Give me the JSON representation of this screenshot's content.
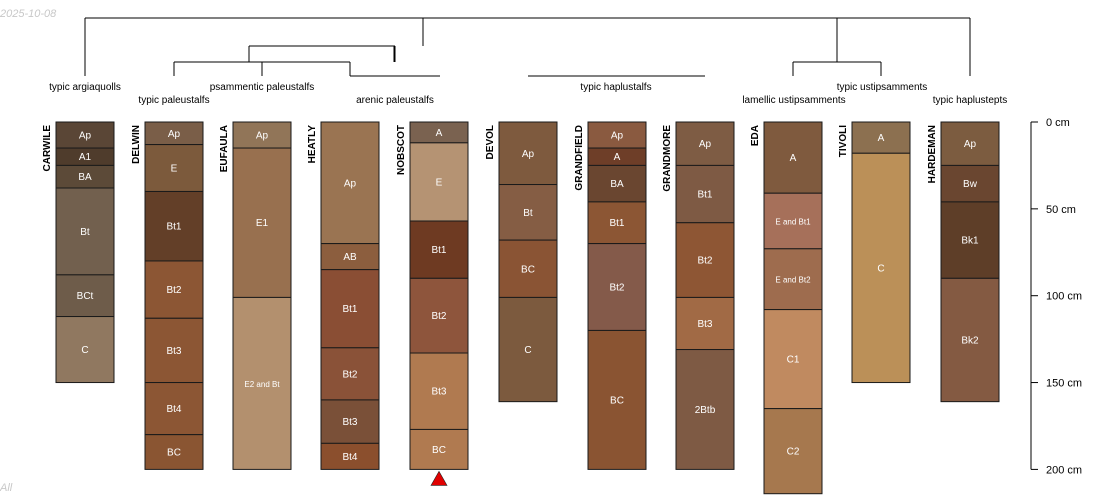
{
  "meta": {
    "date": "2025-10-08",
    "footer": "All"
  },
  "chart_data": {
    "type": "soil-profile-sketch",
    "title": "",
    "depth_unit": "cm",
    "depth_axis": {
      "ticks": [
        0,
        50,
        100,
        150,
        200
      ],
      "labels": [
        "0 cm",
        "50 cm",
        "100 cm",
        "150 cm",
        "200 cm"
      ],
      "range": [
        0,
        200
      ]
    },
    "groups": [
      {
        "label": "typic argiaquolls",
        "members": [
          "CARWILE"
        ]
      },
      {
        "label": "typic paleustalfs",
        "members": [
          "DELWIN"
        ]
      },
      {
        "label": "psammentic paleustalfs",
        "members": [
          "EUFAULA"
        ]
      },
      {
        "label": "arenic paleustalfs",
        "members": [
          "HEATLY",
          "NOBSCOT"
        ]
      },
      {
        "label": "typic haplustalfs",
        "members": [
          "DEVOL",
          "GRANDFIELD",
          "GRANDMORE"
        ]
      },
      {
        "label": "lamellic ustipsamments",
        "members": [
          "EDA"
        ]
      },
      {
        "label": "typic ustipsamments",
        "members": [
          "TIVOLI"
        ]
      },
      {
        "label": "typic haplustepts",
        "members": [
          "HARDEMAN"
        ]
      }
    ],
    "profiles": [
      {
        "name": "CARWILE",
        "horizons": [
          {
            "name": "Ap",
            "top": 0,
            "bottom": 15,
            "color": "#5a4636"
          },
          {
            "name": "A1",
            "top": 15,
            "bottom": 25,
            "color": "#4f3c2c"
          },
          {
            "name": "BA",
            "top": 25,
            "bottom": 38,
            "color": "#5c4a38"
          },
          {
            "name": "Bt",
            "top": 38,
            "bottom": 88,
            "color": "#72604e"
          },
          {
            "name": "BCt",
            "top": 88,
            "bottom": 112,
            "color": "#6e5c4a"
          },
          {
            "name": "C",
            "top": 112,
            "bottom": 150,
            "color": "#907860"
          }
        ]
      },
      {
        "name": "DELWIN",
        "horizons": [
          {
            "name": "Ap",
            "top": 0,
            "bottom": 13,
            "color": "#7a5e48"
          },
          {
            "name": "E",
            "top": 13,
            "bottom": 40,
            "color": "#7c5a3c"
          },
          {
            "name": "Bt1",
            "top": 40,
            "bottom": 80,
            "color": "#633f28"
          },
          {
            "name": "Bt2",
            "top": 80,
            "bottom": 113,
            "color": "#8c5634"
          },
          {
            "name": "Bt3",
            "top": 113,
            "bottom": 150,
            "color": "#8c5634"
          },
          {
            "name": "Bt4",
            "top": 150,
            "bottom": 180,
            "color": "#8c5634"
          },
          {
            "name": "BC",
            "top": 180,
            "bottom": 200,
            "color": "#8a5532"
          }
        ]
      },
      {
        "name": "EUFAULA",
        "horizons": [
          {
            "name": "Ap",
            "top": 0,
            "bottom": 15,
            "color": "#917558"
          },
          {
            "name": "E1",
            "top": 15,
            "bottom": 101,
            "color": "#98704f"
          },
          {
            "name": "E2 and Bt",
            "top": 101,
            "bottom": 200,
            "color": "#b3906e"
          }
        ]
      },
      {
        "name": "HEATLY",
        "horizons": [
          {
            "name": "Ap",
            "top": 0,
            "bottom": 70,
            "color": "#9a7452"
          },
          {
            "name": "AB",
            "top": 70,
            "bottom": 85,
            "color": "#8c5e3e"
          },
          {
            "name": "Bt1",
            "top": 85,
            "bottom": 130,
            "color": "#8a4e34"
          },
          {
            "name": "Bt2",
            "top": 130,
            "bottom": 160,
            "color": "#8a5238"
          },
          {
            "name": "Bt3",
            "top": 160,
            "bottom": 185,
            "color": "#7a5038"
          },
          {
            "name": "Bt4",
            "top": 185,
            "bottom": 200,
            "color": "#8b4f2d"
          }
        ]
      },
      {
        "name": "NOBSCOT",
        "marker": "truncated",
        "horizons": [
          {
            "name": "A",
            "top": 0,
            "bottom": 12,
            "color": "#7a6250"
          },
          {
            "name": "E",
            "top": 12,
            "bottom": 57,
            "color": "#b59373"
          },
          {
            "name": "Bt1",
            "top": 57,
            "bottom": 90,
            "color": "#6e3a22"
          },
          {
            "name": "Bt2",
            "top": 90,
            "bottom": 133,
            "color": "#8e553c"
          },
          {
            "name": "Bt3",
            "top": 133,
            "bottom": 177,
            "color": "#b07a50"
          },
          {
            "name": "BC",
            "top": 177,
            "bottom": 200,
            "color": "#b07a50"
          }
        ]
      },
      {
        "name": "DEVOL",
        "horizons": [
          {
            "name": "Ap",
            "top": 0,
            "bottom": 36,
            "color": "#7e5a3e"
          },
          {
            "name": "Bt",
            "top": 36,
            "bottom": 68,
            "color": "#855d44"
          },
          {
            "name": "BC",
            "top": 68,
            "bottom": 101,
            "color": "#8a5434"
          },
          {
            "name": "C",
            "top": 101,
            "bottom": 161,
            "color": "#7c5a3e"
          }
        ]
      },
      {
        "name": "GRANDFIELD",
        "horizons": [
          {
            "name": "Ap",
            "top": 0,
            "bottom": 15,
            "color": "#8a5a40"
          },
          {
            "name": "A",
            "top": 15,
            "bottom": 25,
            "color": "#6e3e28"
          },
          {
            "name": "BA",
            "top": 25,
            "bottom": 46,
            "color": "#6a4630"
          },
          {
            "name": "Bt1",
            "top": 46,
            "bottom": 70,
            "color": "#8c5634"
          },
          {
            "name": "Bt2",
            "top": 70,
            "bottom": 120,
            "color": "#845a4a"
          },
          {
            "name": "BC",
            "top": 120,
            "bottom": 200,
            "color": "#8a5432"
          }
        ]
      },
      {
        "name": "GRANDMORE",
        "horizons": [
          {
            "name": "Ap",
            "top": 0,
            "bottom": 25,
            "color": "#7e5c44"
          },
          {
            "name": "Bt1",
            "top": 25,
            "bottom": 58,
            "color": "#7e5a44"
          },
          {
            "name": "Bt2",
            "top": 58,
            "bottom": 101,
            "color": "#8e5634"
          },
          {
            "name": "Bt3",
            "top": 101,
            "bottom": 131,
            "color": "#a16a45"
          },
          {
            "name": "2Btb",
            "top": 131,
            "bottom": 200,
            "color": "#7e5a44"
          }
        ]
      },
      {
        "name": "EDA",
        "horizons": [
          {
            "name": "A",
            "top": 0,
            "bottom": 41,
            "color": "#7f5a3e"
          },
          {
            "name": "E and Bt1",
            "top": 41,
            "bottom": 73,
            "color": "#a6705a"
          },
          {
            "name": "E and Bt2",
            "top": 73,
            "bottom": 108,
            "color": "#9e6c4e"
          },
          {
            "name": "C1",
            "top": 108,
            "bottom": 165,
            "color": "#c08a60"
          },
          {
            "name": "C2",
            "top": 165,
            "bottom": 214,
            "color": "#a6784e"
          }
        ]
      },
      {
        "name": "TIVOLI",
        "horizons": [
          {
            "name": "A",
            "top": 0,
            "bottom": 18,
            "color": "#8c7050"
          },
          {
            "name": "C",
            "top": 18,
            "bottom": 150,
            "color": "#bb9058"
          }
        ]
      },
      {
        "name": "HARDEMAN",
        "horizons": [
          {
            "name": "Ap",
            "top": 0,
            "bottom": 25,
            "color": "#7c5c40"
          },
          {
            "name": "Bw",
            "top": 25,
            "bottom": 46,
            "color": "#6a4630"
          },
          {
            "name": "Bk1",
            "top": 46,
            "bottom": 90,
            "color": "#5e3e28"
          },
          {
            "name": "Bk2",
            "top": 90,
            "bottom": 161,
            "color": "#845a42"
          }
        ]
      }
    ]
  }
}
